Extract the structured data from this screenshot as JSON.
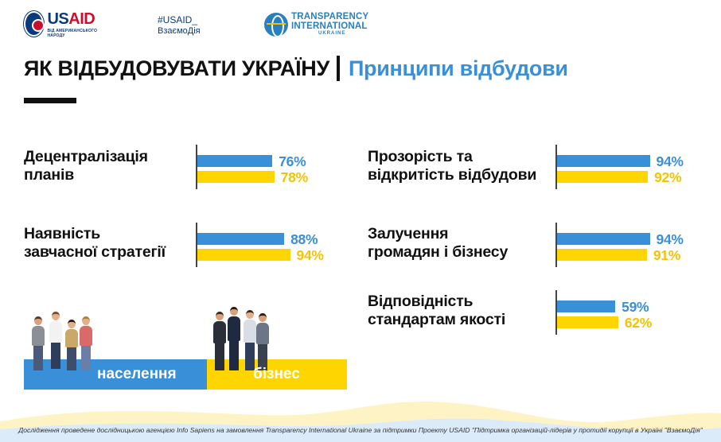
{
  "header": {
    "usaid_word_a": "US",
    "usaid_word_b": "AID",
    "usaid_sub": "ВІД АМЕРИКАНСЬКОГО НАРОДУ",
    "hashtag_line1": "#USAID_",
    "hashtag_line2": "ВзаємоДія",
    "ti_line1": "TRANSPARENCY",
    "ti_line2": "INTERNATIONAL",
    "ti_line3": "UKRAINE"
  },
  "title": {
    "main": "ЯК ВІДБУДОВУВАТИ УКРАЇНУ",
    "sub": "Принципи відбудови"
  },
  "legend": {
    "population": "населення",
    "business": "бізнес"
  },
  "colors": {
    "population": "#3a8fd9",
    "business": "#ffd500",
    "title_accent": "#3a8fd9"
  },
  "chart_data": {
    "type": "bar",
    "orientation": "horizontal",
    "categories": [
      "Децентралізація планів",
      "Наявність завчасної стратегії",
      "Прозорість та відкритість відбудови",
      "Залучення громадян і бізнесу",
      "Відповідність стандартам якості"
    ],
    "series": [
      {
        "name": "населення",
        "values": [
          76,
          88,
          94,
          94,
          59
        ]
      },
      {
        "name": "бізнес",
        "values": [
          78,
          94,
          92,
          91,
          62
        ]
      }
    ],
    "value_format": "{v}%",
    "category_lines": [
      [
        "Децентралізація",
        "планів"
      ],
      [
        "Наявність",
        "завчасної стратегії"
      ],
      [
        "Прозорість та",
        "відкритість відбудови"
      ],
      [
        "Залучення",
        "громадян і бізнесу"
      ],
      [
        "Відповідність",
        "стандартам якості"
      ]
    ]
  },
  "footnote": "Дослідження проведене дослідницькою агенцією Info Sapiens на замовлення Transparency International Ukraine за підтримки Проекту USAID \"Підтримка організацій-лідерів у протидії корупції в Україні \"ВзаємоДія\""
}
